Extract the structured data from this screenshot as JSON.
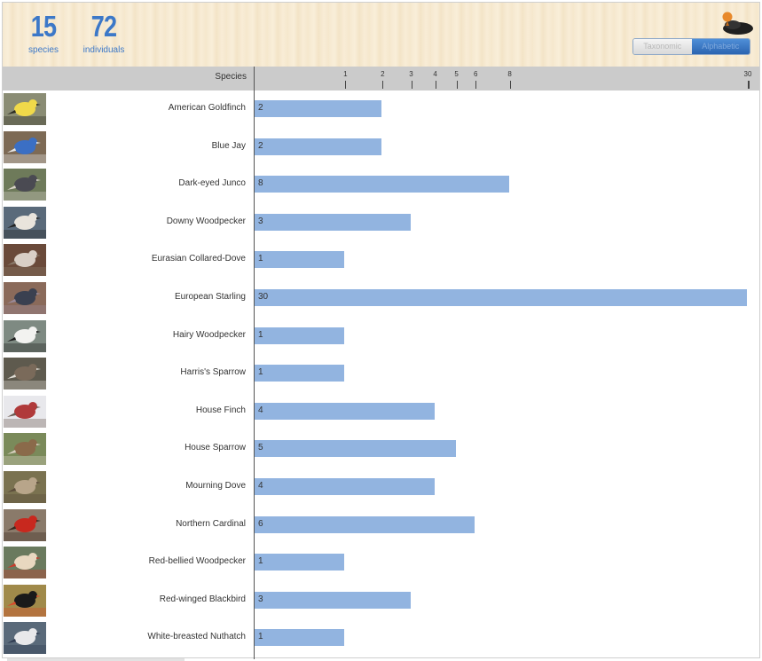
{
  "stats": {
    "species_count": "15",
    "species_label": "species",
    "individuals_count": "72",
    "individuals_label": "individuals"
  },
  "toggle": {
    "options": [
      "Taxonomic",
      "Alphabetic"
    ],
    "selected": "Alphabetic"
  },
  "colors": {
    "accent": "#3c78c8",
    "bar": "#92b4e0",
    "axis_bar": "#cbcbcb"
  },
  "chart_data": {
    "type": "bar",
    "orientation": "horizontal",
    "ylabel": "Species",
    "xscale": "sqrt",
    "xlim": [
      0,
      30
    ],
    "xticks": [
      1,
      2,
      3,
      4,
      5,
      6,
      8,
      30
    ],
    "categories": [
      "American Goldfinch",
      "Blue Jay",
      "Dark-eyed Junco",
      "Downy Woodpecker",
      "Eurasian Collared-Dove",
      "European Starling",
      "Hairy Woodpecker",
      "Harris's Sparrow",
      "House Finch",
      "House Sparrow",
      "Mourning Dove",
      "Northern Cardinal",
      "Red-bellied Woodpecker",
      "Red-winged Blackbird",
      "White-breasted Nuthatch"
    ],
    "values": [
      2,
      2,
      8,
      3,
      1,
      30,
      1,
      1,
      4,
      5,
      4,
      6,
      1,
      3,
      1
    ]
  }
}
